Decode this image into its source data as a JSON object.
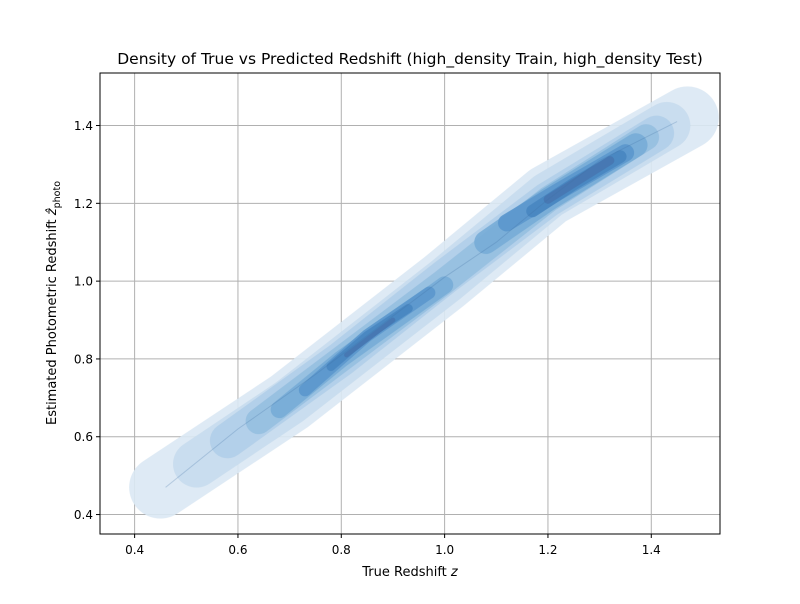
{
  "chart_data": {
    "type": "kde-density",
    "title": "Density of True vs Predicted Redshift (high_density Train, high_density Test)",
    "xlabel": "True Redshift",
    "xlabel_symbol": "z",
    "ylabel": "Estimated Photometric Redshift",
    "ylabel_symbol": "ẑ",
    "ylabel_subscript": "photo",
    "xlim": [
      0.333,
      1.533
    ],
    "ylim": [
      0.35,
      1.535
    ],
    "x_ticks": [
      0.4,
      0.6,
      0.8,
      1.0,
      1.2,
      1.4
    ],
    "x_tick_labels": [
      "0.4",
      "0.6",
      "0.8",
      "1.0",
      "1.2",
      "1.4"
    ],
    "y_ticks": [
      0.4,
      0.6,
      0.8,
      1.0,
      1.2,
      1.4
    ],
    "y_tick_labels": [
      "0.4",
      "0.6",
      "0.8",
      "1.0",
      "1.2",
      "1.4"
    ],
    "grid": true,
    "colormap": [
      "#eaf3fb",
      "#d5e6f5",
      "#bcd7ee",
      "#9ec5e6",
      "#7eb1dc",
      "#5f9bd0",
      "#4b88c3",
      "#4a78b2"
    ],
    "density_ridge": [
      [
        0.46,
        0.47
      ],
      [
        0.6,
        0.62
      ],
      [
        0.75,
        0.76
      ],
      [
        0.9,
        0.91
      ],
      [
        1.0,
        1.01
      ],
      [
        1.1,
        1.1
      ],
      [
        1.2,
        1.21
      ],
      [
        1.3,
        1.31
      ],
      [
        1.45,
        1.41
      ]
    ],
    "density_levels": [
      {
        "level": 1,
        "bands": [
          {
            "x_range": [
              0.45,
              1.47
            ],
            "polyline": [
              [
                0.45,
                0.47
              ],
              [
                0.7,
                0.69
              ],
              [
                1.0,
                1.0
              ],
              [
                1.2,
                1.22
              ],
              [
                1.47,
                1.42
              ]
            ],
            "width": 0.08
          }
        ]
      },
      {
        "level": 2,
        "bands": [
          {
            "x_range": [
              0.52,
              1.43
            ],
            "polyline": [
              [
                0.52,
                0.53
              ],
              [
                0.7,
                0.69
              ],
              [
                1.0,
                1.0
              ],
              [
                1.2,
                1.22
              ],
              [
                1.43,
                1.4
              ]
            ],
            "width": 0.06
          }
        ]
      },
      {
        "level": 3,
        "bands": [
          {
            "x_range": [
              0.58,
              1.41
            ],
            "polyline": [
              [
                0.58,
                0.59
              ],
              [
                0.8,
                0.8
              ],
              [
                1.0,
                1.01
              ],
              [
                1.2,
                1.21
              ],
              [
                1.41,
                1.38
              ]
            ],
            "width": 0.045
          }
        ]
      },
      {
        "level": 4,
        "bands": [
          {
            "x_range": [
              0.64,
              1.39
            ],
            "polyline": [
              [
                0.64,
                0.64
              ],
              [
                0.8,
                0.8
              ],
              [
                1.0,
                1.0
              ],
              [
                1.2,
                1.21
              ],
              [
                1.39,
                1.37
              ]
            ],
            "width": 0.033
          }
        ]
      },
      {
        "level": 5,
        "bands": [
          {
            "x_range": [
              0.68,
              1.0
            ],
            "polyline": [
              [
                0.68,
                0.67
              ],
              [
                0.8,
                0.8
              ],
              [
                1.0,
                0.99
              ]
            ],
            "width": 0.022
          },
          {
            "x_range": [
              1.08,
              1.37
            ],
            "polyline": [
              [
                1.08,
                1.1
              ],
              [
                1.2,
                1.21
              ],
              [
                1.37,
                1.35
              ]
            ],
            "width": 0.03
          }
        ]
      },
      {
        "level": 6,
        "bands": [
          {
            "x_range": [
              0.73,
              0.97
            ],
            "polyline": [
              [
                0.73,
                0.72
              ],
              [
                0.85,
                0.86
              ],
              [
                0.97,
                0.97
              ]
            ],
            "width": 0.016
          },
          {
            "x_range": [
              1.12,
              1.35
            ],
            "polyline": [
              [
                1.12,
                1.15
              ],
              [
                1.22,
                1.23
              ],
              [
                1.35,
                1.33
              ]
            ],
            "width": 0.022
          }
        ]
      },
      {
        "level": 7,
        "bands": [
          {
            "x_range": [
              0.78,
              0.93
            ],
            "polyline": [
              [
                0.78,
                0.78
              ],
              [
                0.85,
                0.86
              ],
              [
                0.93,
                0.93
              ]
            ],
            "width": 0.011
          },
          {
            "x_range": [
              1.17,
              1.34
            ],
            "polyline": [
              [
                1.17,
                1.18
              ],
              [
                1.25,
                1.25
              ],
              [
                1.34,
                1.32
              ]
            ],
            "width": 0.016
          }
        ]
      },
      {
        "level": 8,
        "bands": [
          {
            "x_range": [
              0.81,
              0.9
            ],
            "polyline": [
              [
                0.81,
                0.81
              ],
              [
                0.9,
                0.9
              ]
            ],
            "width": 0.006
          },
          {
            "x_range": [
              1.2,
              1.32
            ],
            "polyline": [
              [
                1.2,
                1.21
              ],
              [
                1.32,
                1.31
              ]
            ],
            "width": 0.011
          }
        ]
      }
    ]
  }
}
